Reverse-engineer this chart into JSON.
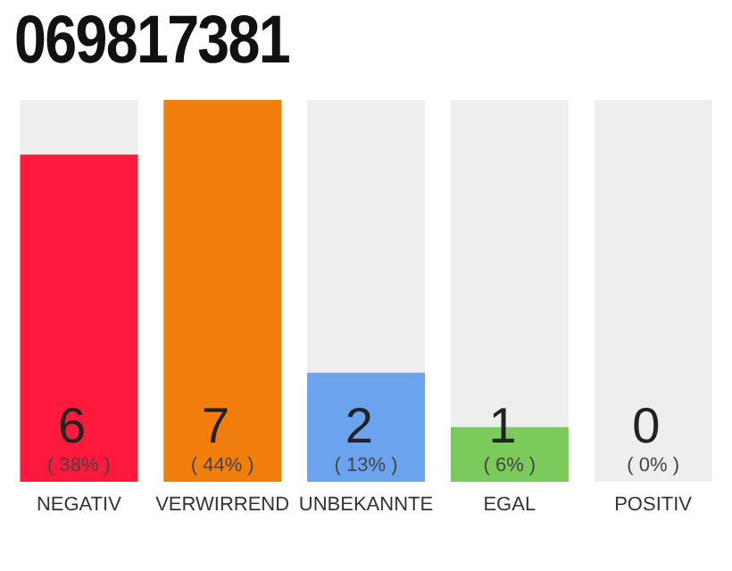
{
  "chart_data": {
    "type": "bar",
    "title": "069817381",
    "categories": [
      "NEGATIV",
      "VERWIRREND",
      "UNBEKANNTE",
      "EGAL",
      "POSITIV"
    ],
    "values": [
      6,
      7,
      2,
      1,
      0
    ],
    "value_labels": [
      "6 ( 38% )",
      "7 ( 44% )",
      "2 ( 13% )",
      "1 ( 6% )",
      "0 ( 0% )"
    ],
    "colors": [
      "#ff1a3d",
      "#f27e0e",
      "#6ca3ef",
      "#7acb5b",
      "#eeeeee"
    ],
    "ylim": [
      0,
      7
    ],
    "tick_labels": "x",
    "grid": false,
    "legend": false
  }
}
